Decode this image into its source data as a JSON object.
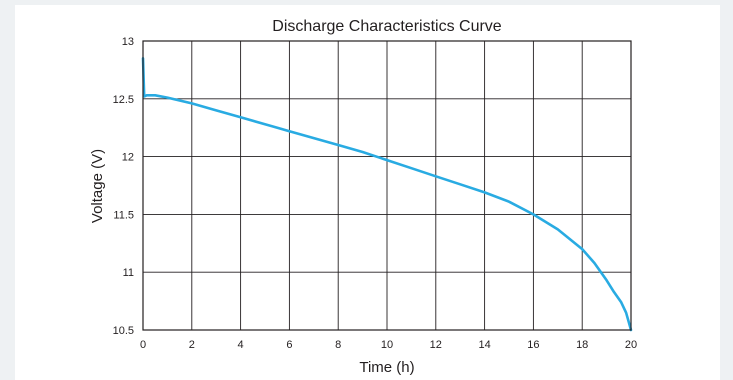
{
  "chart_data": {
    "type": "line",
    "title": "Discharge Characteristics Curve",
    "xlabel": "Time (h)",
    "ylabel": "Voltage (V)",
    "xlim": [
      0,
      20
    ],
    "ylim": [
      10.5,
      13
    ],
    "xticks": [
      0,
      2,
      4,
      6,
      8,
      10,
      12,
      14,
      16,
      18,
      20
    ],
    "yticks": [
      "10.5",
      "11",
      "11.5",
      "12",
      "12.5",
      "13"
    ],
    "grid": true,
    "colors": {
      "line": "#29abe2",
      "grid": "#231f20",
      "axis": "#231f20"
    },
    "series": [
      {
        "x": [
          0,
          0.05,
          0.15,
          0.5,
          1,
          2,
          3,
          4,
          5,
          6,
          7,
          8,
          9,
          10,
          11,
          12,
          13,
          14,
          15,
          16,
          17,
          18,
          18.5,
          19,
          19.3,
          19.6,
          19.8,
          20
        ],
        "y": [
          12.85,
          12.52,
          12.53,
          12.53,
          12.51,
          12.46,
          12.4,
          12.34,
          12.28,
          12.22,
          12.16,
          12.1,
          12.04,
          11.97,
          11.9,
          11.83,
          11.76,
          11.69,
          11.61,
          11.5,
          11.37,
          11.2,
          11.08,
          10.93,
          10.83,
          10.74,
          10.65,
          10.5
        ]
      }
    ]
  }
}
